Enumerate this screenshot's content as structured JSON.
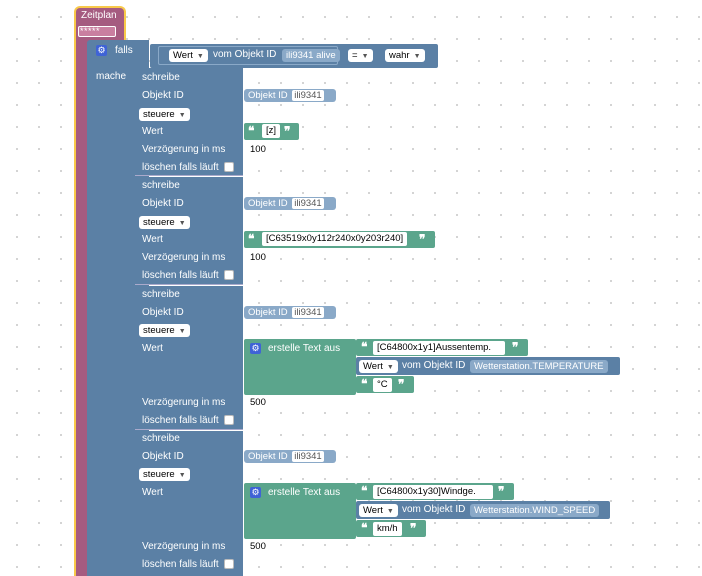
{
  "hat": {
    "label": "Zeitplan",
    "cron": "* * * * *"
  },
  "if_block": {
    "falls_label": "falls",
    "mache_label": "mache",
    "condition": {
      "attr": "Wert",
      "vom_label": "vom Objekt ID",
      "object": "ili9341 alive",
      "op": "=",
      "value": "wahr"
    }
  },
  "labels": {
    "schreibe": "schreibe",
    "objekt_id": "Objekt ID",
    "objekt_id_placeholder": "Objekt ID",
    "steuere": "steuere",
    "wert": "Wert",
    "delay": "Verzögerung in ms",
    "clear": "löschen falls läuft",
    "create_text": "erstelle Text aus",
    "vom_objekt_id": "vom Objekt ID",
    "wert_dd": "Wert",
    "quote_open": "❝",
    "quote_close": "❞"
  },
  "blocks": [
    {
      "object_id": "ili9341",
      "value": "[z]",
      "delay": "100"
    },
    {
      "object_id": "ili9341",
      "value": "[C63519x0y112r240x0y203r240]",
      "delay": "100"
    },
    {
      "object_id": "ili9341",
      "text_prefix": "[C64800x1y1]Aussentemp.",
      "state": "Wetterstation.TEMPERATURE",
      "suffix": "°C",
      "delay": "500"
    },
    {
      "object_id": "ili9341",
      "text_prefix": "[C64800x1y30]Windge.",
      "state": "Wetterstation.WIND_SPEED",
      "suffix": "km/h",
      "delay": "500"
    }
  ],
  "colors": {
    "event": "#a55b80",
    "control": "#5b80a5",
    "action": "#5b80a5",
    "text": "#5ba58c",
    "state": "#5b80a5",
    "highlight": "#f8c94a"
  }
}
